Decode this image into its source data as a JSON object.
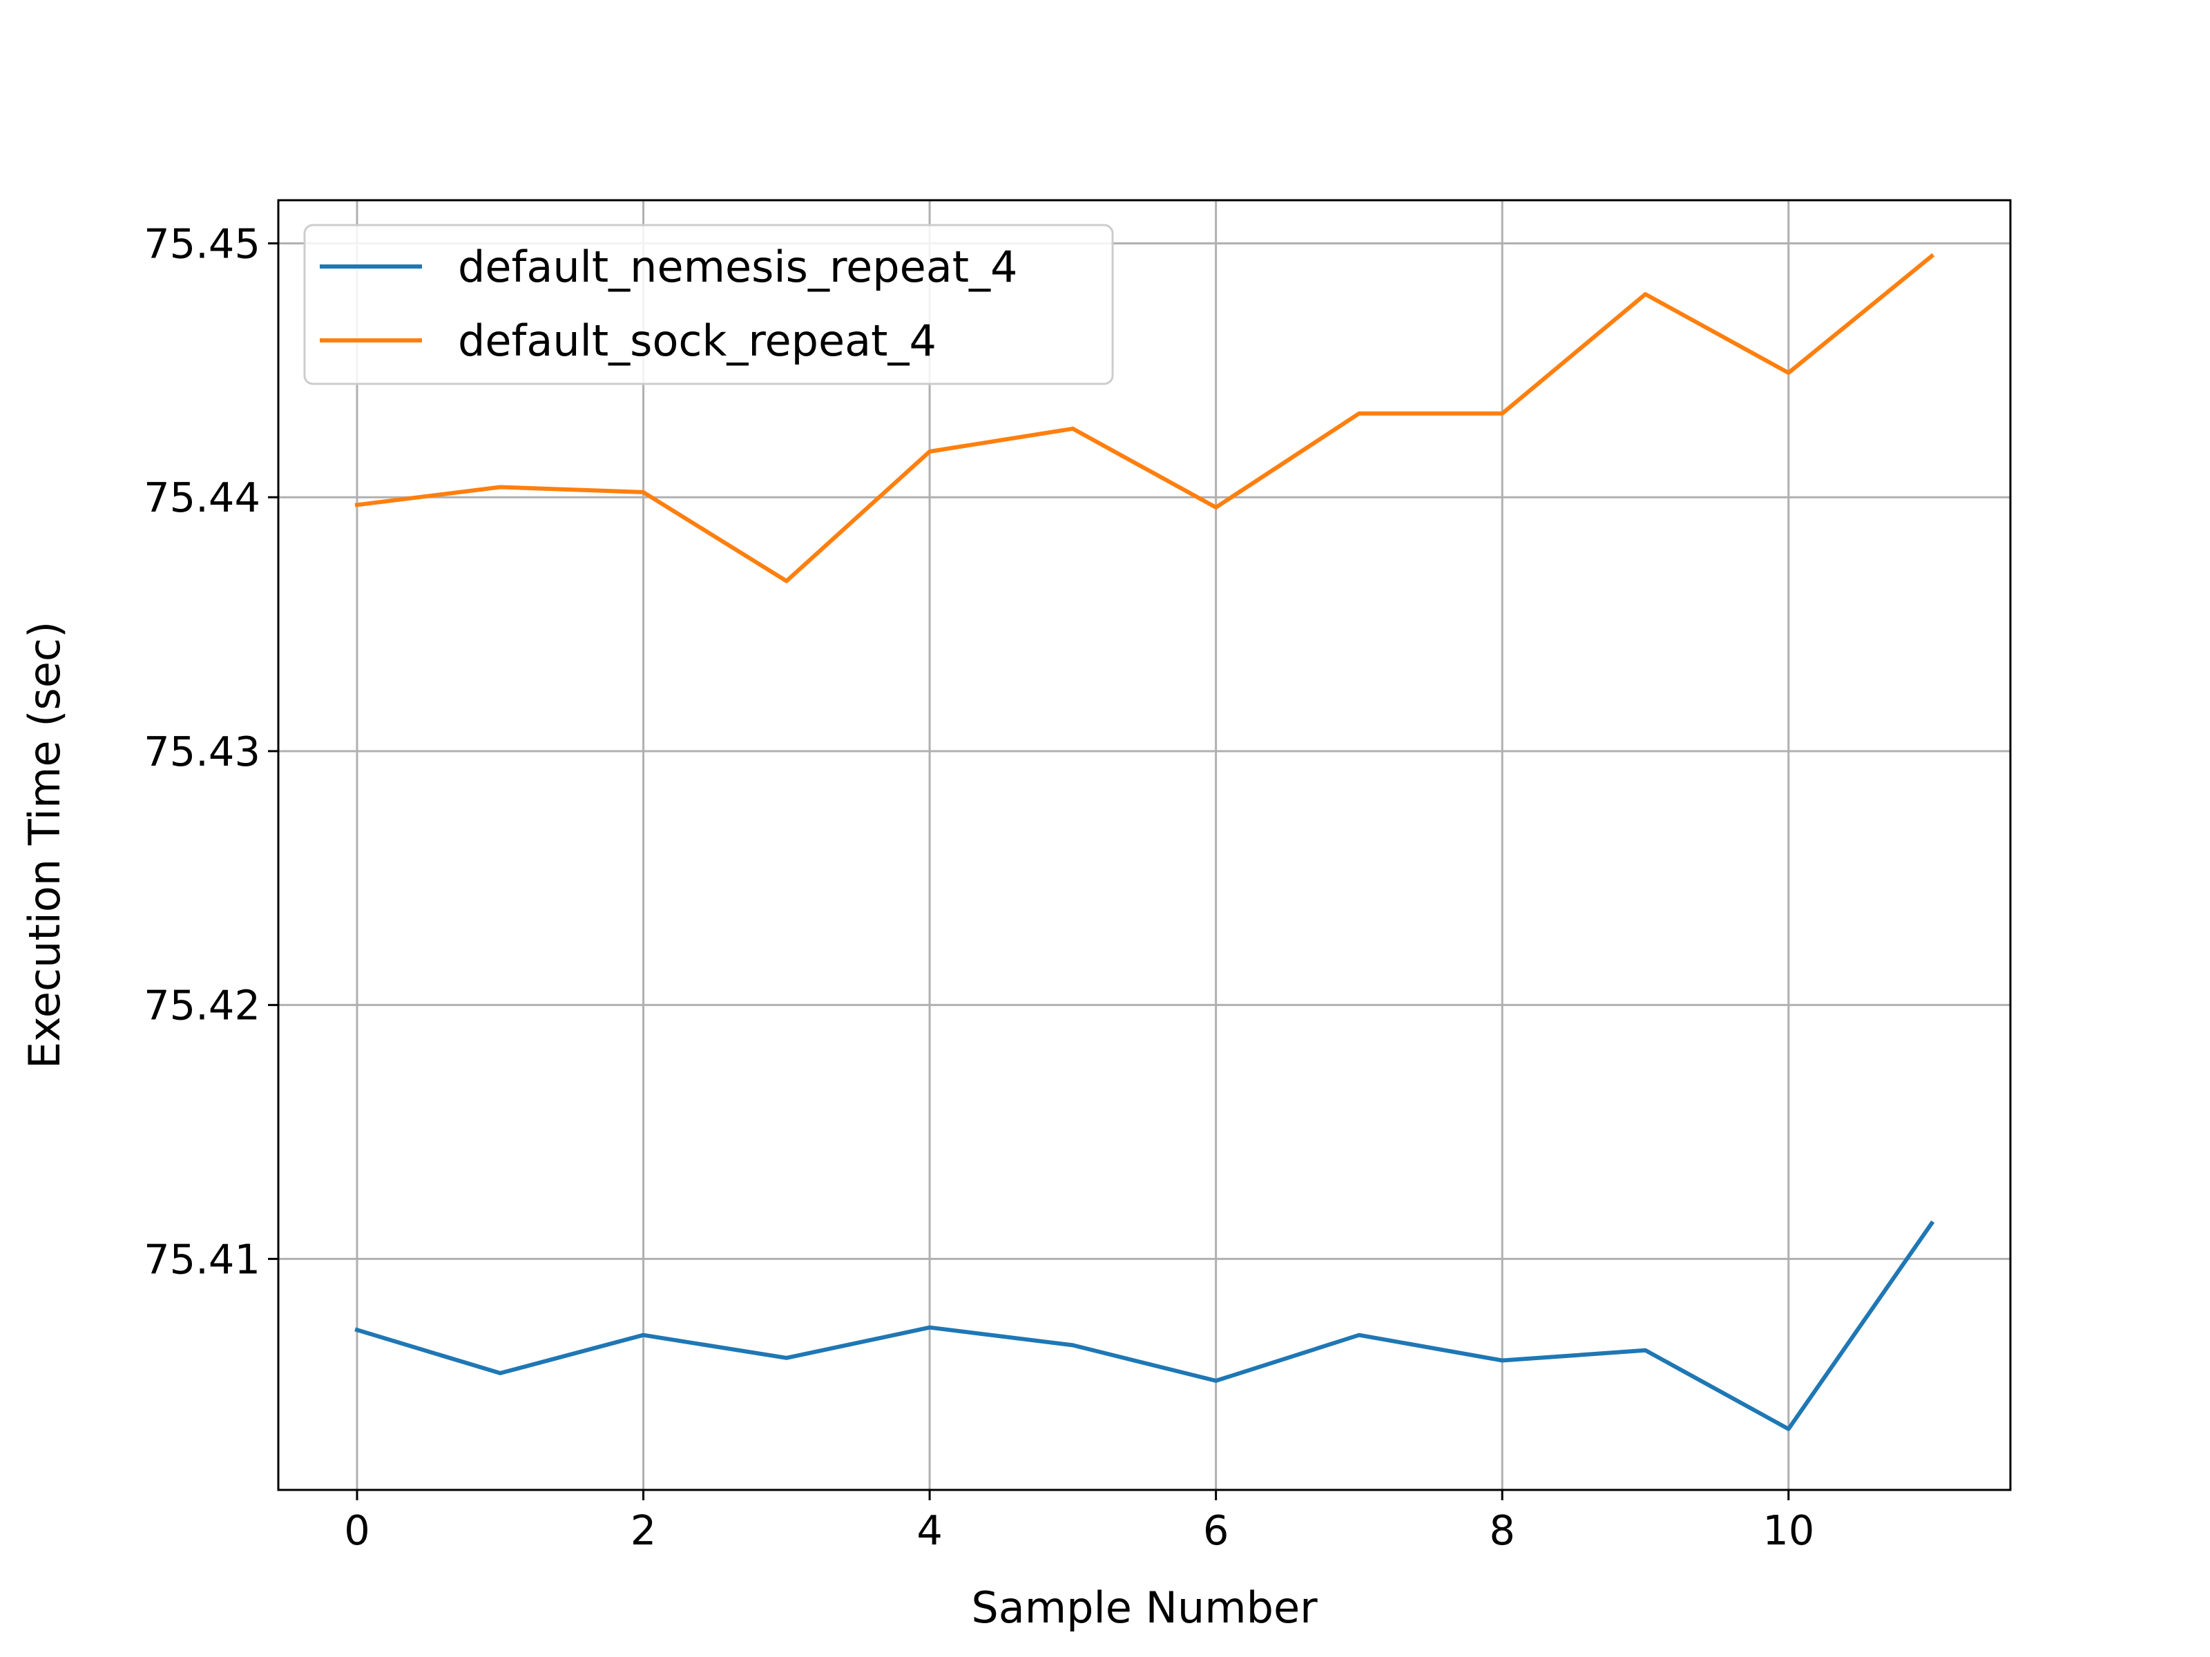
{
  "chart_data": {
    "type": "line",
    "title": "",
    "xlabel": "Sample Number",
    "ylabel": "Execution Time (sec)",
    "xlim": [
      -0.55,
      11.55
    ],
    "ylim": [
      75.4009,
      75.4517
    ],
    "xticks": [
      0,
      2,
      4,
      6,
      8,
      10
    ],
    "xtick_labels": [
      "0",
      "2",
      "4",
      "6",
      "8",
      "10"
    ],
    "yticks": [
      75.41,
      75.42,
      75.43,
      75.44,
      75.45
    ],
    "ytick_labels": [
      "75.41",
      "75.42",
      "75.43",
      "75.44",
      "75.45"
    ],
    "grid": true,
    "legend_position": "top-left",
    "x": [
      0,
      1,
      2,
      3,
      4,
      5,
      6,
      7,
      8,
      9,
      10,
      11
    ],
    "series": [
      {
        "name": "default_nemesis_repeat_4",
        "color": "#1f77b4",
        "values": [
          75.4072,
          75.4055,
          75.407,
          75.4061,
          75.4073,
          75.4066,
          75.4052,
          75.407,
          75.406,
          75.4064,
          75.4033,
          75.4114
        ]
      },
      {
        "name": "default_sock_repeat_4",
        "color": "#ff7f0e",
        "values": [
          75.4397,
          75.4404,
          75.4402,
          75.4367,
          75.4418,
          75.4427,
          75.4396,
          75.4433,
          75.4433,
          75.448,
          75.4449,
          75.4495
        ]
      }
    ]
  }
}
